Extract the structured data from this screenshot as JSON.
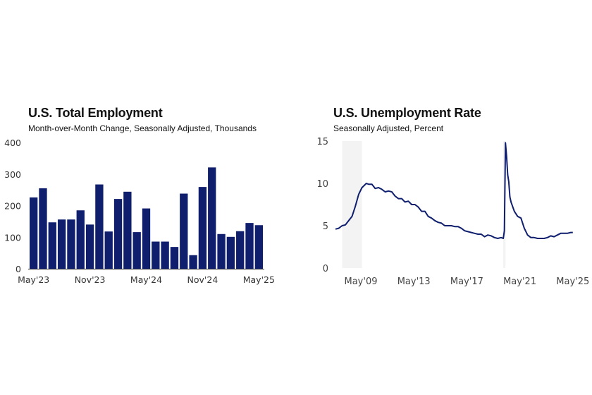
{
  "chart_data": [
    {
      "type": "bar",
      "title": "U.S. Total Employment",
      "subtitle": "Month-over-Month Change, Seasonally Adjusted, Thousands",
      "color": "#0f1f6e",
      "categories": [
        "2023-05",
        "2023-06",
        "2023-07",
        "2023-08",
        "2023-09",
        "2023-10",
        "2023-11",
        "2023-12",
        "2024-01",
        "2024-02",
        "2024-03",
        "2024-04",
        "2024-05",
        "2024-06",
        "2024-07",
        "2024-08",
        "2024-09",
        "2024-10",
        "2024-11",
        "2024-12",
        "2025-01",
        "2025-02",
        "2025-03",
        "2025-04",
        "2025-05"
      ],
      "values": [
        226,
        255,
        147,
        156,
        156,
        185,
        140,
        267,
        118,
        221,
        244,
        116,
        191,
        86,
        86,
        69,
        238,
        43,
        259,
        321,
        110,
        101,
        119,
        145,
        138
      ],
      "xticks": [
        "May'23",
        "Nov'23",
        "May'24",
        "Nov'24",
        "May'25"
      ],
      "yticks": [
        0,
        100,
        200,
        300,
        400
      ],
      "ylim": [
        0,
        400
      ],
      "grid": false
    },
    {
      "type": "line",
      "title": "U.S. Unemployment Rate",
      "subtitle": "Seasonally Adjusted, Percent",
      "color": "#0f1f6e",
      "shading_color": "#f3f3f3",
      "recession_shading": [
        [
          "2007-12",
          "2009-06"
        ],
        [
          "2020-02",
          "2020-04"
        ]
      ],
      "x": [
        "2007-06",
        "2007-09",
        "2007-12",
        "2008-03",
        "2008-06",
        "2008-09",
        "2008-12",
        "2009-03",
        "2009-06",
        "2009-10",
        "2009-12",
        "2010-03",
        "2010-06",
        "2010-09",
        "2010-12",
        "2011-03",
        "2011-06",
        "2011-09",
        "2011-12",
        "2012-03",
        "2012-06",
        "2012-09",
        "2012-12",
        "2013-03",
        "2013-06",
        "2013-09",
        "2013-12",
        "2014-03",
        "2014-06",
        "2014-09",
        "2014-12",
        "2015-03",
        "2015-06",
        "2015-09",
        "2015-12",
        "2016-03",
        "2016-06",
        "2016-09",
        "2016-12",
        "2017-03",
        "2017-06",
        "2017-09",
        "2017-12",
        "2018-03",
        "2018-06",
        "2018-09",
        "2018-12",
        "2019-03",
        "2019-06",
        "2019-09",
        "2019-12",
        "2020-02",
        "2020-03",
        "2020-04",
        "2020-05",
        "2020-06",
        "2020-07",
        "2020-08",
        "2020-09",
        "2020-12",
        "2021-03",
        "2021-06",
        "2021-09",
        "2021-12",
        "2022-03",
        "2022-06",
        "2022-09",
        "2022-12",
        "2023-03",
        "2023-06",
        "2023-09",
        "2023-12",
        "2024-03",
        "2024-06",
        "2024-09",
        "2024-12",
        "2025-03",
        "2025-05"
      ],
      "y": [
        4.6,
        4.7,
        5.0,
        5.1,
        5.6,
        6.1,
        7.3,
        8.7,
        9.5,
        10.0,
        9.9,
        9.9,
        9.4,
        9.5,
        9.3,
        9.0,
        9.1,
        9.0,
        8.5,
        8.2,
        8.2,
        7.8,
        7.9,
        7.5,
        7.5,
        7.2,
        6.7,
        6.7,
        6.1,
        5.9,
        5.6,
        5.4,
        5.3,
        5.0,
        5.0,
        5.0,
        4.9,
        4.9,
        4.7,
        4.4,
        4.3,
        4.2,
        4.1,
        4.0,
        4.0,
        3.7,
        3.9,
        3.8,
        3.6,
        3.5,
        3.6,
        3.5,
        4.4,
        14.8,
        13.2,
        11.0,
        10.2,
        8.4,
        7.8,
        6.7,
        6.1,
        5.9,
        4.7,
        3.9,
        3.6,
        3.6,
        3.5,
        3.5,
        3.5,
        3.6,
        3.8,
        3.7,
        3.9,
        4.1,
        4.1,
        4.1,
        4.2,
        4.2
      ],
      "xticks": [
        {
          "label": "May'09",
          "date": "2009-05"
        },
        {
          "label": "May'13",
          "date": "2013-05"
        },
        {
          "label": "May'17",
          "date": "2017-05"
        },
        {
          "label": "May'21",
          "date": "2021-05"
        },
        {
          "label": "May'25",
          "date": "2025-05"
        }
      ],
      "yticks": [
        0,
        5,
        10,
        15
      ],
      "ylim": [
        0,
        15
      ],
      "grid": false
    }
  ]
}
